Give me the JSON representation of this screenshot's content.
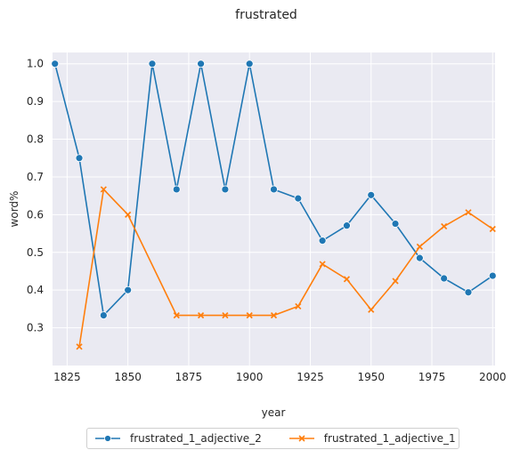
{
  "chart_data": {
    "type": "line",
    "title": "frustrated",
    "xlabel": "year",
    "ylabel": "word%",
    "xlim": [
      1819,
      2001
    ],
    "ylim": [
      0.2,
      1.03
    ],
    "xticks": [
      1825,
      1850,
      1875,
      1900,
      1925,
      1950,
      1975,
      2000
    ],
    "yticks": [
      0.3,
      0.4,
      0.5,
      0.6,
      0.7,
      0.8,
      0.9,
      1.0
    ],
    "grid": true,
    "legend_position": "bottom-center",
    "background_color": "#eaeaf2",
    "series": [
      {
        "name": "frustrated_1_adjective_2",
        "color": "#1f77b4",
        "marker": "circle",
        "x": [
          1820,
          1830,
          1840,
          1850,
          1860,
          1870,
          1880,
          1890,
          1900,
          1910,
          1920,
          1930,
          1940,
          1950,
          1960,
          1970,
          1980,
          1990,
          2000
        ],
        "y": [
          1.0,
          0.75,
          0.333,
          0.4,
          1.0,
          0.667,
          1.0,
          0.667,
          1.0,
          0.667,
          0.643,
          0.531,
          0.571,
          0.652,
          0.576,
          0.485,
          0.431,
          0.394,
          0.438
        ]
      },
      {
        "name": "frustrated_1_adjective_1",
        "color": "#ff7f0e",
        "marker": "x",
        "x": [
          1830,
          1840,
          1850,
          1870,
          1880,
          1890,
          1900,
          1910,
          1920,
          1930,
          1940,
          1950,
          1960,
          1970,
          1980,
          1990,
          2000
        ],
        "y": [
          0.25,
          0.667,
          0.6,
          0.333,
          0.333,
          0.333,
          0.333,
          0.333,
          0.357,
          0.469,
          0.429,
          0.348,
          0.424,
          0.515,
          0.569,
          0.606,
          0.562
        ]
      }
    ]
  }
}
